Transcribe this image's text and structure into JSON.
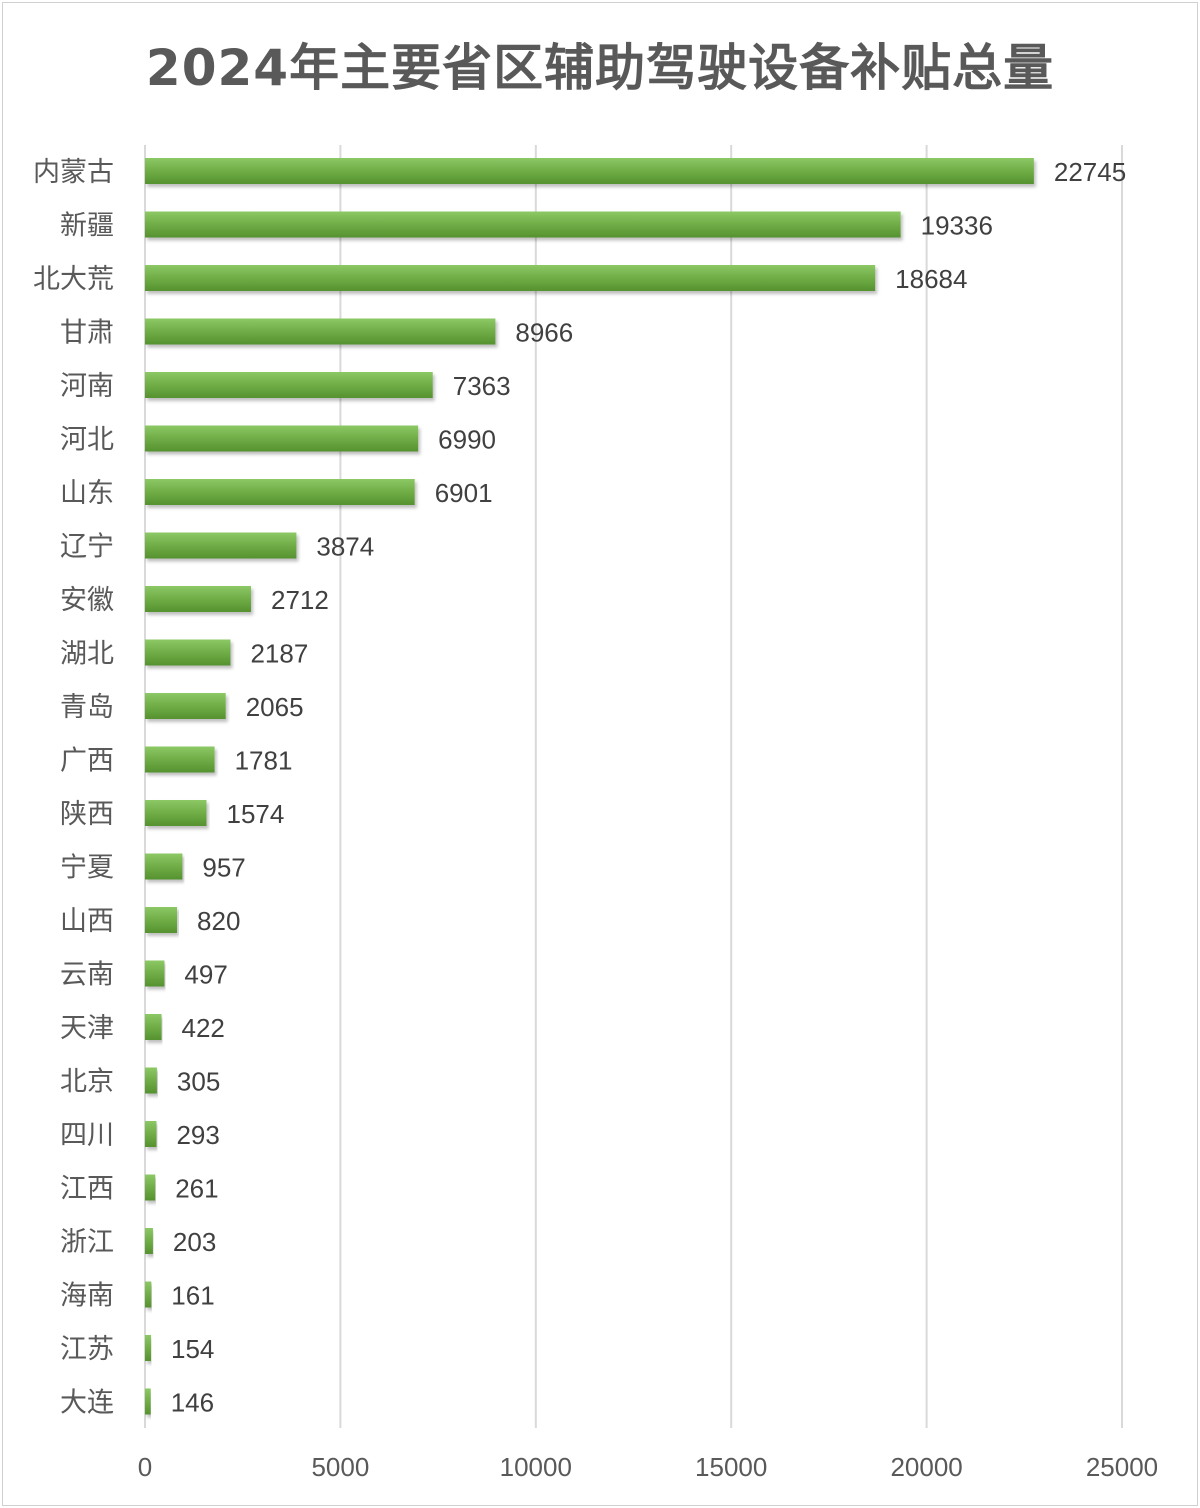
{
  "chart_data": {
    "type": "bar",
    "orientation": "horizontal",
    "title": "2024年主要省区辅助驾驶设备补贴总量",
    "categories": [
      "内蒙古",
      "新疆",
      "北大荒",
      "甘肃",
      "河南",
      "河北",
      "山东",
      "辽宁",
      "安徽",
      "湖北",
      "青岛",
      "广西",
      "陕西",
      "宁夏",
      "山西",
      "云南",
      "天津",
      "北京",
      "四川",
      "江西",
      "浙江",
      "海南",
      "江苏",
      "大连"
    ],
    "values": [
      22745,
      19336,
      18684,
      8966,
      7363,
      6990,
      6901,
      3874,
      2712,
      2187,
      2065,
      1781,
      1574,
      957,
      820,
      497,
      422,
      305,
      293,
      261,
      203,
      161,
      154,
      146
    ],
    "xlim": [
      0,
      25000
    ],
    "xticks": [
      0,
      5000,
      10000,
      15000,
      20000,
      25000
    ],
    "grid": "vertical",
    "legend": "none",
    "data_labels": true,
    "bar_color": "#70ad47",
    "bar_color_dark": "#4e8a2e",
    "grid_color": "#d9d9d9"
  }
}
